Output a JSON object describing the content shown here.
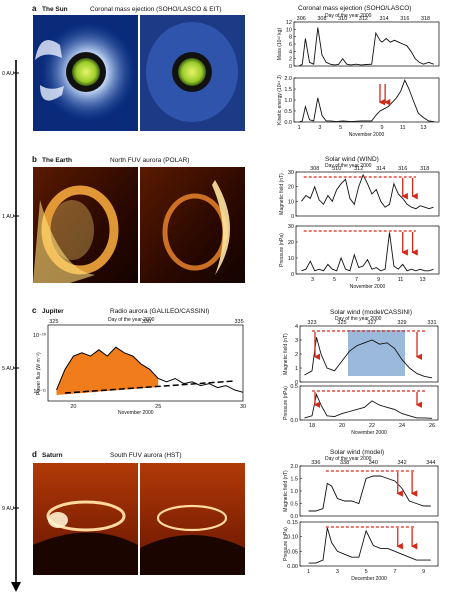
{
  "axis_au": [
    "0 AU",
    "1 AU",
    "5 AU",
    "9 AU"
  ],
  "panels": [
    {
      "id": "a",
      "letter": "a",
      "body": "The Sun",
      "image_title": "Coronal mass ejection (SOHO/LASCO & EIT)",
      "plot_title": "Coronal mass ejection (SOHO/LASCO)",
      "top_axis_title": "Day of the year 2000",
      "top_ticks": [
        "306",
        "308",
        "310",
        "312",
        "314",
        "316",
        "318"
      ],
      "bottom_axis_title": "November 2000",
      "bottom_ticks": [
        "1",
        "3",
        "5",
        "7",
        "9",
        "11",
        "13"
      ],
      "sub_plots": [
        {
          "ylabel": "Mass (10¹² kg)",
          "yticks": [
            "0",
            "2",
            "4",
            "6",
            "8",
            "10",
            "12"
          ]
        },
        {
          "ylabel": "Kinetic energy (10²⁴ J)",
          "yticks": [
            "0.0",
            "0.5",
            "1.0",
            "1.5",
            "2.0"
          ]
        }
      ]
    },
    {
      "id": "b",
      "letter": "b",
      "body": "The Earth",
      "image_title": "North FUV aurora (POLAR)",
      "plot_title": "Solar wind (WIND)",
      "top_axis_title": "Day of the year 2000",
      "top_ticks": [
        "308",
        "310",
        "312",
        "314",
        "316",
        "318"
      ],
      "bottom_axis_title": "November 2000",
      "bottom_ticks": [
        "3",
        "5",
        "7",
        "9",
        "11",
        "13"
      ],
      "sub_plots": [
        {
          "ylabel": "Magnetic field (nT)",
          "yticks": [
            "0",
            "10",
            "20",
            "30"
          ]
        },
        {
          "ylabel": "Pressure (nPa)",
          "yticks": [
            "0",
            "10",
            "20",
            "30"
          ]
        }
      ]
    },
    {
      "id": "c",
      "letter": "c",
      "body": "Jupiter",
      "image_title": "Radio aurora (GALILEO/CASSINI)",
      "image_top_axis_title": "Day of the year 2000",
      "image_top_ticks": [
        "325",
        "330",
        "335"
      ],
      "image_bottom_axis_title": "November 2000",
      "image_bottom_ticks": [
        "20",
        "25",
        "30"
      ],
      "image_ylabel": "Power flux (W m⁻²)",
      "image_yticks": [
        "10⁻¹⁰",
        "10⁻¹¹"
      ],
      "plot_title": "Solar wind (model/CASSINI)",
      "top_axis_title": "Day of the year 2000",
      "top_ticks": [
        "323",
        "325",
        "327",
        "329",
        "331"
      ],
      "bottom_axis_title": "November 2000",
      "bottom_ticks": [
        "18",
        "20",
        "22",
        "24",
        "26"
      ],
      "sub_plots": [
        {
          "ylabel": "Magnetic field (nT)",
          "yticks": [
            "0",
            "1",
            "2",
            "3",
            "4"
          ]
        },
        {
          "ylabel": "Pressure (nPa)",
          "yticks": [
            "0.0",
            "0.5"
          ]
        }
      ]
    },
    {
      "id": "d",
      "letter": "d",
      "body": "Saturn",
      "image_title": "South FUV aurora (HST)",
      "plot_title": "Solar wind (model)",
      "top_axis_title": "Day of the year 2000",
      "top_ticks": [
        "336",
        "338",
        "340",
        "342",
        "344"
      ],
      "bottom_axis_title": "December 2000",
      "bottom_ticks": [
        "1",
        "3",
        "5",
        "7",
        "9"
      ],
      "sub_plots": [
        {
          "ylabel": "Magnetic field (nT)",
          "yticks": [
            "0.0",
            "0.5",
            "1.0",
            "1.5",
            "2.0"
          ]
        },
        {
          "ylabel": "Pressure (nPa)",
          "yticks": [
            "0.00",
            "0.05",
            "0.10",
            "0.15"
          ]
        }
      ]
    }
  ],
  "chart_data": [
    {
      "type": "line",
      "panel": "a",
      "ylabel": "Mass (10¹² kg)",
      "ylim": [
        0,
        12
      ],
      "x": [
        1,
        1.3,
        1.6,
        2,
        2.4,
        2.8,
        3.2,
        3.6,
        4,
        4.4,
        4.8,
        5.2,
        5.6,
        6,
        6.5,
        7,
        7.5,
        8,
        8.4,
        8.8,
        9,
        9.4,
        9.8,
        10.2,
        10.6,
        11,
        11.4,
        11.8,
        12.2,
        12.6,
        13,
        13.5,
        14
      ],
      "y": [
        0,
        0.5,
        7.5,
        1,
        0.5,
        10.5,
        3,
        1,
        0.5,
        0.3,
        0.4,
        2,
        0.5,
        0.3,
        0.5,
        0.3,
        0.4,
        0.5,
        9,
        7,
        6.5,
        7.5,
        6.5,
        7,
        6.5,
        6,
        5.5,
        4,
        2,
        1,
        0.5,
        1,
        0.5
      ]
    },
    {
      "type": "line",
      "panel": "a",
      "ylabel": "Kinetic energy (10²⁴ J)",
      "ylim": [
        0,
        2
      ],
      "x": [
        1,
        1.3,
        1.6,
        2,
        2.4,
        2.8,
        3.2,
        3.6,
        4,
        4.6,
        5.2,
        6,
        7,
        8,
        8.4,
        8.8,
        9.2,
        9.6,
        10,
        10.4,
        10.8,
        11.2,
        11.6,
        12,
        12.5,
        13,
        13.5,
        14
      ],
      "y": [
        0,
        0.05,
        0.7,
        0.1,
        0.05,
        1.1,
        0.3,
        0.05,
        0.05,
        0.02,
        0.05,
        0.02,
        0.05,
        0.05,
        0.3,
        0.5,
        0.6,
        0.7,
        0.9,
        1.1,
        1.4,
        1.9,
        1.5,
        1.0,
        0.4,
        0.2,
        0.05,
        0.02
      ]
    },
    {
      "type": "line",
      "panel": "b",
      "ylabel": "Magnetic field (nT)",
      "ylim": [
        0,
        30
      ],
      "x": [
        2,
        2.4,
        2.8,
        3.2,
        3.6,
        4,
        4.4,
        4.8,
        5.2,
        5.6,
        6,
        6.4,
        6.8,
        7.2,
        7.6,
        8,
        8.4,
        8.8,
        9.2,
        9.6,
        10,
        10.4,
        10.8,
        11.2,
        11.6,
        12,
        12.4,
        12.8,
        13.2,
        13.6,
        14
      ],
      "y": [
        10,
        14,
        12,
        20,
        11,
        8,
        14,
        10,
        18,
        22,
        25,
        12,
        8,
        20,
        28,
        22,
        15,
        18,
        10,
        6,
        8,
        22,
        15,
        12,
        8,
        6,
        5,
        7,
        6,
        5,
        6
      ]
    },
    {
      "type": "line",
      "panel": "b",
      "ylabel": "Pressure (nPa)",
      "ylim": [
        0,
        30
      ],
      "x": [
        2,
        2.4,
        2.8,
        3.2,
        3.6,
        4,
        4.4,
        4.8,
        5.2,
        5.6,
        6,
        6.4,
        6.8,
        7.2,
        7.6,
        8,
        8.4,
        8.8,
        9.2,
        9.6,
        10,
        10.4,
        10.8,
        11.2,
        11.6,
        12,
        12.4,
        12.8,
        13.2,
        13.6,
        14
      ],
      "y": [
        2,
        3,
        8,
        2,
        3,
        2,
        6,
        3,
        2,
        10,
        3,
        2,
        12,
        4,
        5,
        9,
        3,
        4,
        2,
        3,
        26,
        5,
        3,
        6,
        2,
        3,
        2,
        3,
        2,
        2,
        3
      ]
    },
    {
      "type": "area",
      "panel": "c",
      "ylabel": "Power flux (W m⁻²)",
      "log_y": true,
      "ylim": [
        1e-11,
        1e-10
      ],
      "x": [
        19,
        19.5,
        20,
        20.5,
        21,
        21.5,
        22,
        22.5,
        23,
        23.5,
        24,
        24.5,
        25,
        25.5,
        26,
        26.5,
        27,
        27.5,
        28,
        28.5,
        29,
        29.5,
        30
      ],
      "y": [
        1.2e-11,
        2.5e-11,
        4e-11,
        4.5e-11,
        4e-11,
        5e-11,
        4e-11,
        5.5e-11,
        4.5e-11,
        4e-11,
        3e-11,
        2.5e-11,
        1.8e-11,
        1.6e-11,
        1.8e-11,
        1.5e-11,
        1.6e-11,
        1.4e-11,
        1.5e-11,
        1.3e-11,
        1.4e-11,
        1.2e-11,
        1.1e-11
      ]
    },
    {
      "type": "line",
      "panel": "c",
      "ylabel": "Magnetic field (nT)",
      "ylim": [
        0,
        4
      ],
      "x": [
        17.5,
        18,
        18.3,
        18.6,
        19,
        19.5,
        20,
        20.5,
        21,
        21.5,
        22,
        22.5,
        23,
        23.5,
        24,
        24.5,
        25,
        25.5,
        26
      ],
      "y": [
        0.5,
        0.8,
        3.2,
        2.0,
        1.0,
        0.8,
        1.5,
        2.2,
        2.6,
        2.8,
        3.0,
        2.7,
        2.8,
        2.4,
        1.6,
        1.0,
        0.6,
        0.4,
        0.3
      ]
    },
    {
      "type": "line",
      "panel": "c",
      "ylabel": "Pressure (nPa)",
      "ylim": [
        0,
        0.8
      ],
      "x": [
        17.5,
        18,
        18.3,
        18.6,
        19,
        19.5,
        20,
        20.5,
        21,
        21.5,
        22,
        22.5,
        23,
        23.5,
        24,
        24.5,
        25,
        25.5,
        26
      ],
      "y": [
        0.05,
        0.1,
        0.6,
        0.35,
        0.1,
        0.08,
        0.15,
        0.2,
        0.25,
        0.3,
        0.45,
        0.35,
        0.3,
        0.25,
        0.15,
        0.1,
        0.05,
        0.05,
        0.04
      ]
    },
    {
      "type": "line",
      "panel": "d",
      "ylabel": "Magnetic field (nT)",
      "ylim": [
        0,
        2
      ],
      "x": [
        1,
        1.5,
        2,
        2.3,
        2.6,
        3,
        3.5,
        4,
        4.5,
        5,
        5.5,
        6,
        6.5,
        7,
        7.5,
        8,
        8.5,
        9,
        9.5
      ],
      "y": [
        0.2,
        0.2,
        0.3,
        1.3,
        1.2,
        0.7,
        0.6,
        0.6,
        0.5,
        1.5,
        1.6,
        1.6,
        1.5,
        1.4,
        1.1,
        0.6,
        0.5,
        0.4,
        0.4
      ]
    },
    {
      "type": "line",
      "panel": "d",
      "ylabel": "Pressure (nPa)",
      "ylim": [
        0,
        0.15
      ],
      "x": [
        1,
        1.5,
        2,
        2.3,
        2.6,
        3,
        3.5,
        4,
        4.5,
        5,
        5.5,
        6,
        6.5,
        7,
        7.5,
        8,
        8.5,
        9,
        9.5
      ],
      "y": [
        0.01,
        0.01,
        0.02,
        0.13,
        0.08,
        0.05,
        0.04,
        0.03,
        0.03,
        0.12,
        0.07,
        0.06,
        0.06,
        0.05,
        0.04,
        0.03,
        0.02,
        0.02,
        0.02
      ]
    }
  ]
}
